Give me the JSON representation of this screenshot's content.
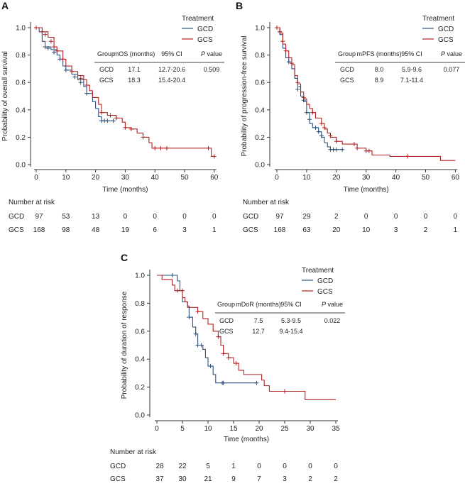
{
  "colors": {
    "GCD": "#2b4f7e",
    "GCS": "#b22222"
  },
  "chart_data": [
    {
      "panel": "A",
      "type": "line",
      "subtype": "kaplan-meier step",
      "ylabel": "Probability of overall survival",
      "xlabel": "Time (months)",
      "xlim": [
        0,
        60
      ],
      "ylim": [
        0,
        1
      ],
      "xticks": [
        0,
        10,
        20,
        30,
        40,
        50,
        60
      ],
      "yticks": [
        "0.0",
        "0.2",
        "0.4",
        "0.6",
        "0.8",
        "1.0"
      ],
      "legend": {
        "title": "Treatment",
        "entries": [
          "GCD",
          "GCS"
        ],
        "placement": "top-right"
      },
      "table": {
        "headers": [
          "Group",
          "mOS (months)",
          "95% CI",
          "P value"
        ],
        "rows": [
          [
            "GCD",
            "17.1",
            "12.7-20.6",
            "0.509"
          ],
          [
            "GCS",
            "18.3",
            "15.4-20.4",
            ""
          ]
        ]
      },
      "series": [
        {
          "name": "GCD",
          "points": [
            [
              0,
              1
            ],
            [
              1,
              0.97
            ],
            [
              2,
              0.9
            ],
            [
              3,
              0.86
            ],
            [
              5,
              0.84
            ],
            [
              7,
              0.8
            ],
            [
              8,
              0.77
            ],
            [
              9,
              0.72
            ],
            [
              10,
              0.69
            ],
            [
              12,
              0.66
            ],
            [
              14,
              0.62
            ],
            [
              16,
              0.57
            ],
            [
              17,
              0.52
            ],
            [
              19,
              0.46
            ],
            [
              20,
              0.41
            ],
            [
              21,
              0.35
            ],
            [
              22,
              0.32
            ],
            [
              26,
              0.32
            ]
          ],
          "censored": [
            [
              3,
              0.86
            ],
            [
              4,
              0.85
            ],
            [
              6,
              0.82
            ],
            [
              8,
              0.77
            ],
            [
              10,
              0.69
            ],
            [
              13,
              0.64
            ],
            [
              15,
              0.6
            ],
            [
              17,
              0.52
            ],
            [
              22,
              0.32
            ],
            [
              23,
              0.32
            ],
            [
              24,
              0.32
            ],
            [
              26,
              0.32
            ]
          ]
        },
        {
          "name": "GCS",
          "points": [
            [
              0,
              1
            ],
            [
              2,
              0.97
            ],
            [
              4,
              0.93
            ],
            [
              6,
              0.86
            ],
            [
              7,
              0.83
            ],
            [
              9,
              0.77
            ],
            [
              10,
              0.72
            ],
            [
              12,
              0.68
            ],
            [
              14,
              0.65
            ],
            [
              16,
              0.62
            ],
            [
              17,
              0.58
            ],
            [
              18,
              0.54
            ],
            [
              19,
              0.49
            ],
            [
              21,
              0.44
            ],
            [
              22,
              0.38
            ],
            [
              24,
              0.36
            ],
            [
              27,
              0.34
            ],
            [
              29,
              0.31
            ],
            [
              30,
              0.27
            ],
            [
              32,
              0.26
            ],
            [
              34,
              0.23
            ],
            [
              36,
              0.2
            ],
            [
              38,
              0.16
            ],
            [
              39,
              0.12
            ],
            [
              58,
              0.12
            ],
            [
              59,
              0.06
            ],
            [
              60,
              0.06
            ]
          ],
          "censored": [
            [
              0,
              1
            ],
            [
              2,
              0.97
            ],
            [
              3,
              0.95
            ],
            [
              5,
              0.9
            ],
            [
              6,
              0.86
            ],
            [
              7,
              0.83
            ],
            [
              9,
              0.77
            ],
            [
              12,
              0.68
            ],
            [
              15,
              0.63
            ],
            [
              17,
              0.58
            ],
            [
              22,
              0.38
            ],
            [
              25,
              0.36
            ],
            [
              27,
              0.34
            ],
            [
              30,
              0.27
            ],
            [
              32,
              0.26
            ],
            [
              36,
              0.2
            ],
            [
              40,
              0.12
            ],
            [
              42,
              0.12
            ],
            [
              44,
              0.12
            ],
            [
              58,
              0.12
            ],
            [
              60,
              0.06
            ]
          ]
        }
      ],
      "risk": {
        "title": "Number at risk",
        "rows": [
          {
            "group": "GCD",
            "values": [
              "97",
              "53",
              "13",
              "0",
              "0",
              "0",
              "0"
            ]
          },
          {
            "group": "GCS",
            "values": [
              "168",
              "98",
              "48",
              "19",
              "6",
              "3",
              "1"
            ]
          }
        ]
      }
    },
    {
      "panel": "B",
      "type": "line",
      "subtype": "kaplan-meier step",
      "ylabel": "Probability of progression-free survival",
      "xlabel": "Time (months)",
      "xlim": [
        0,
        60
      ],
      "ylim": [
        0,
        1
      ],
      "xticks": [
        0,
        10,
        20,
        30,
        40,
        50,
        60
      ],
      "yticks": [
        "0.0",
        "0.2",
        "0.4",
        "0.6",
        "0.8",
        "1.0"
      ],
      "legend": {
        "title": "Treatment",
        "entries": [
          "GCD",
          "GCS"
        ],
        "placement": "top-right"
      },
      "table": {
        "headers": [
          "Group",
          "mPFS (months)",
          "95% CI",
          "P value"
        ],
        "rows": [
          [
            "GCD",
            "8.0",
            "5.9-9.6",
            "0.077"
          ],
          [
            "GCS",
            "8.9",
            "7.1-11.4",
            ""
          ]
        ]
      },
      "series": [
        {
          "name": "GCD",
          "points": [
            [
              0,
              1
            ],
            [
              1,
              0.95
            ],
            [
              2,
              0.85
            ],
            [
              3,
              0.78
            ],
            [
              4,
              0.75
            ],
            [
              5,
              0.7
            ],
            [
              6,
              0.63
            ],
            [
              7,
              0.57
            ],
            [
              8,
              0.5
            ],
            [
              9,
              0.46
            ],
            [
              10,
              0.38
            ],
            [
              11,
              0.3
            ],
            [
              12,
              0.27
            ],
            [
              14,
              0.24
            ],
            [
              15,
              0.2
            ],
            [
              16,
              0.16
            ],
            [
              17,
              0.13
            ],
            [
              18,
              0.11
            ],
            [
              22,
              0.11
            ]
          ],
          "censored": [
            [
              1,
              0.97
            ],
            [
              4,
              0.75
            ],
            [
              7,
              0.55
            ],
            [
              9,
              0.47
            ],
            [
              10,
              0.38
            ],
            [
              11,
              0.33
            ],
            [
              13,
              0.27
            ],
            [
              14,
              0.24
            ],
            [
              15,
              0.21
            ],
            [
              18,
              0.11
            ],
            [
              19,
              0.11
            ],
            [
              20,
              0.11
            ],
            [
              22,
              0.11
            ]
          ]
        },
        {
          "name": "GCS",
          "points": [
            [
              0,
              1
            ],
            [
              1,
              0.96
            ],
            [
              2,
              0.88
            ],
            [
              3,
              0.83
            ],
            [
              4,
              0.78
            ],
            [
              5,
              0.73
            ],
            [
              6,
              0.65
            ],
            [
              7,
              0.59
            ],
            [
              8,
              0.53
            ],
            [
              9,
              0.48
            ],
            [
              10,
              0.44
            ],
            [
              11,
              0.41
            ],
            [
              12,
              0.38
            ],
            [
              13,
              0.34
            ],
            [
              15,
              0.3
            ],
            [
              16,
              0.26
            ],
            [
              17,
              0.23
            ],
            [
              18,
              0.2
            ],
            [
              20,
              0.17
            ],
            [
              22,
              0.15
            ],
            [
              26,
              0.15
            ],
            [
              27,
              0.12
            ],
            [
              30,
              0.1
            ],
            [
              32,
              0.07
            ],
            [
              38,
              0.06
            ],
            [
              55,
              0.06
            ],
            [
              55,
              0.03
            ],
            [
              60,
              0.03
            ]
          ],
          "censored": [
            [
              0,
              1
            ],
            [
              1,
              0.97
            ],
            [
              2,
              0.9
            ],
            [
              3,
              0.83
            ],
            [
              5,
              0.74
            ],
            [
              7,
              0.6
            ],
            [
              9,
              0.49
            ],
            [
              12,
              0.38
            ],
            [
              15,
              0.3
            ],
            [
              16,
              0.27
            ],
            [
              18,
              0.21
            ],
            [
              20,
              0.17
            ],
            [
              26,
              0.15
            ],
            [
              27,
              0.12
            ],
            [
              30,
              0.1
            ],
            [
              31,
              0.1
            ],
            [
              44,
              0.06
            ]
          ]
        }
      ],
      "risk": {
        "title": "Number at risk",
        "rows": [
          {
            "group": "GCD",
            "values": [
              "97",
              "29",
              "2",
              "0",
              "0",
              "0",
              "0"
            ]
          },
          {
            "group": "GCS",
            "values": [
              "168",
              "63",
              "20",
              "10",
              "3",
              "2",
              "1"
            ]
          }
        ]
      }
    },
    {
      "panel": "C",
      "type": "line",
      "subtype": "kaplan-meier step",
      "ylabel": "Probability of duration of response",
      "xlabel": "Time (months)",
      "xlim": [
        0,
        35
      ],
      "ylim": [
        0,
        1
      ],
      "xticks": [
        0,
        5,
        10,
        15,
        20,
        25,
        30,
        35
      ],
      "yticks": [
        "0.0",
        "0.2",
        "0.4",
        "0.6",
        "0.8",
        "1.0"
      ],
      "legend": {
        "title": "Treatment",
        "entries": [
          "GCD",
          "GCS"
        ],
        "placement": "top-right"
      },
      "table": {
        "headers": [
          "Group",
          "mDoR (months)",
          "95% CI",
          "P value"
        ],
        "rows": [
          [
            "GCD",
            "7.5",
            "5.3-9.5",
            "0.022"
          ],
          [
            "GCS",
            "12.7",
            "9.4-15.4",
            ""
          ]
        ]
      },
      "series": [
        {
          "name": "GCD",
          "points": [
            [
              0,
              1
            ],
            [
              3,
              1
            ],
            [
              4,
              0.96
            ],
            [
              4.5,
              0.89
            ],
            [
              5,
              0.81
            ],
            [
              6,
              0.78
            ],
            [
              6.3,
              0.7
            ],
            [
              7,
              0.63
            ],
            [
              7.6,
              0.58
            ],
            [
              8,
              0.5
            ],
            [
              9,
              0.47
            ],
            [
              9.5,
              0.41
            ],
            [
              10,
              0.35
            ],
            [
              11,
              0.29
            ],
            [
              11.5,
              0.23
            ],
            [
              19.5,
              0.23
            ]
          ],
          "censored": [
            [
              3,
              1
            ],
            [
              6.3,
              0.7
            ],
            [
              7.6,
              0.58
            ],
            [
              8,
              0.5
            ],
            [
              8.7,
              0.5
            ],
            [
              10.5,
              0.35
            ],
            [
              12.8,
              0.23
            ],
            [
              13,
              0.23
            ],
            [
              19.5,
              0.23
            ]
          ]
        },
        {
          "name": "GCS",
          "points": [
            [
              0,
              1
            ],
            [
              1,
              0.97
            ],
            [
              3,
              0.93
            ],
            [
              3.5,
              0.89
            ],
            [
              5,
              0.84
            ],
            [
              5.5,
              0.81
            ],
            [
              6,
              0.77
            ],
            [
              8,
              0.74
            ],
            [
              9,
              0.69
            ],
            [
              10,
              0.65
            ],
            [
              11,
              0.6
            ],
            [
              12,
              0.56
            ],
            [
              12.5,
              0.5
            ],
            [
              13,
              0.44
            ],
            [
              14,
              0.41
            ],
            [
              15,
              0.37
            ],
            [
              16,
              0.32
            ],
            [
              17,
              0.29
            ],
            [
              20,
              0.29
            ],
            [
              20.5,
              0.25
            ],
            [
              21,
              0.21
            ],
            [
              22,
              0.17
            ],
            [
              29,
              0.17
            ],
            [
              29,
              0.11
            ],
            [
              35,
              0.11
            ]
          ],
          "censored": [
            [
              4,
              0.89
            ],
            [
              5,
              0.89
            ],
            [
              8,
              0.74
            ],
            [
              12,
              0.56
            ],
            [
              13,
              0.44
            ],
            [
              14,
              0.41
            ],
            [
              15.5,
              0.37
            ],
            [
              25,
              0.17
            ]
          ]
        }
      ],
      "risk": {
        "title": "Number at risk",
        "rows": [
          {
            "group": "GCD",
            "values": [
              "28",
              "22",
              "5",
              "1",
              "0",
              "0",
              "0",
              "0"
            ]
          },
          {
            "group": "GCS",
            "values": [
              "37",
              "30",
              "21",
              "9",
              "7",
              "3",
              "2",
              "2"
            ]
          }
        ]
      }
    }
  ]
}
